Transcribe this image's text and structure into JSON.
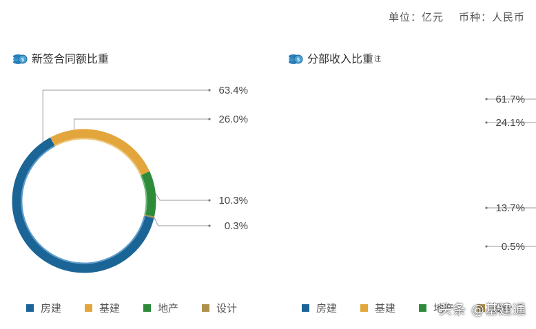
{
  "header": {
    "unit": "单位：亿元",
    "currency": "币种：人民币"
  },
  "colors": {
    "房建": "#1a6596",
    "基建": "#e2a63c",
    "地产": "#2e8b3a",
    "设计": "#b0904a"
  },
  "chart_data": [
    {
      "type": "pie",
      "title": "新签合同额比重",
      "labels": [
        "房建",
        "基建",
        "地产",
        "设计"
      ],
      "values": [
        63.4,
        26.0,
        10.3,
        0.3
      ],
      "value_labels": [
        "63.4%",
        "26.0%",
        "10.3%",
        "0.3%"
      ]
    },
    {
      "type": "pie",
      "title": "分部收入比重",
      "title_note": "注",
      "labels": [
        "房建",
        "基建",
        "地产",
        "设计"
      ],
      "values": [
        61.7,
        24.1,
        13.7,
        0.5
      ],
      "value_labels": [
        "61.7%",
        "24.1%",
        "13.7%",
        "0.5%"
      ]
    }
  ],
  "watermark": "头条 @基建通"
}
